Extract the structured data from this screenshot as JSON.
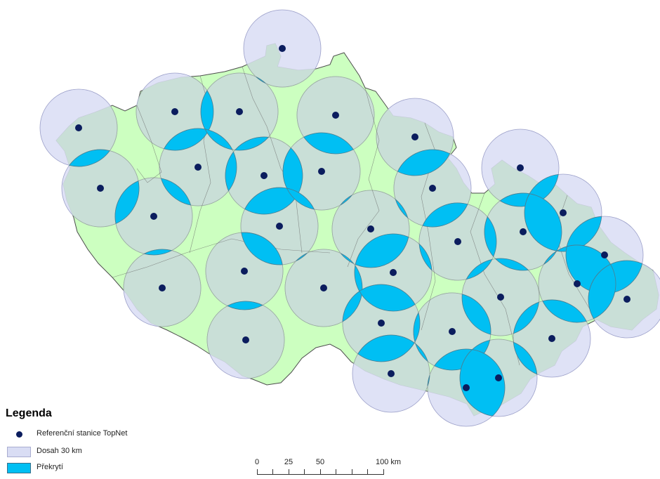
{
  "map": {
    "country_fill": "#ccffc0",
    "country_stroke": "#4d4d4d",
    "coverage_fill": "#d9ddf4",
    "coverage_stroke": "#9a9ec8",
    "inside_fill": "#c8dfd4",
    "overlap_fill": "#00bff3",
    "station_color": "#0b1d5e",
    "station_count": 40
  },
  "legend": {
    "title": "Legenda",
    "items": [
      {
        "label": "Referenční stanice TopNet",
        "symbol": "station-dot"
      },
      {
        "label": "Dosah 30 km",
        "symbol": "coverage-area",
        "color": "#d9ddf4"
      },
      {
        "label": "Překrytí",
        "symbol": "overlap-area",
        "color": "#00bff3"
      }
    ]
  },
  "scale_bar": {
    "labels": [
      "0",
      "25",
      "50",
      "100 km"
    ],
    "values_km": [
      0,
      25,
      50,
      100
    ]
  }
}
